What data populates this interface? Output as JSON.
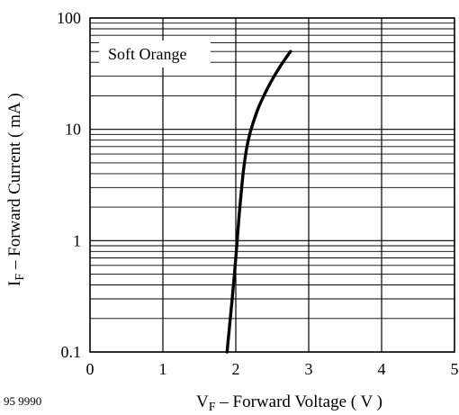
{
  "figure_id": "95 9990",
  "chart_data": {
    "type": "line",
    "xlabel": "V",
    "xlabel_sub": "F",
    "xlabel_rest": " – Forward Voltage ( V )",
    "ylabel": "I",
    "ylabel_sub": "F",
    "ylabel_rest": " – Forward Current ( mA )",
    "xlim": [
      0,
      5
    ],
    "ylim": [
      0.1,
      100
    ],
    "yscale": "log",
    "x_ticks": [
      0,
      1,
      2,
      3,
      4,
      5
    ],
    "x_tick_labels": [
      "0",
      "1",
      "2",
      "3",
      "4",
      "5"
    ],
    "y_ticks": [
      0.1,
      1,
      10,
      100
    ],
    "y_tick_labels": [
      "0.1",
      "1",
      "10",
      "100"
    ],
    "grid": true,
    "legend_position": "top-left",
    "series": [
      {
        "name": "Soft Orange",
        "x": [
          1.88,
          1.95,
          2.0,
          2.05,
          2.1,
          2.15,
          2.2,
          2.3,
          2.4,
          2.5,
          2.6,
          2.7,
          2.75
        ],
        "y": [
          0.1,
          0.3,
          0.7,
          1.8,
          4.0,
          6.8,
          9.5,
          15,
          21,
          28,
          36,
          45,
          50
        ]
      }
    ]
  }
}
